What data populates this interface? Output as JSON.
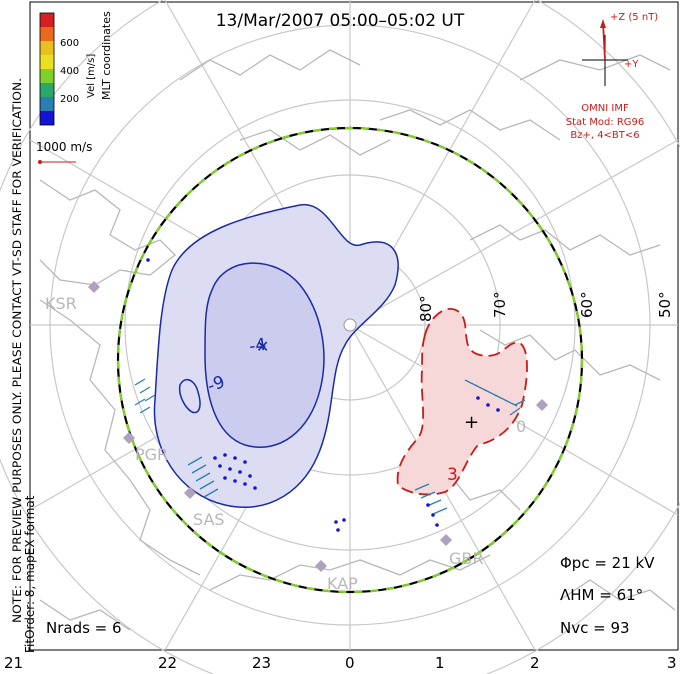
{
  "title": "13/Mar/2007 05:00–05:02 UT",
  "side_note_line1": "NOTE: FOR PREVIEW PURPOSES ONLY. PLEASE CONTACT VT-SD STAFF FOR VERIFICATION.",
  "side_note_line2": "FitOrder: 8, mapEX format",
  "colorbar": {
    "title": "MLT coordinates",
    "unit": "Vel [m/s]",
    "ticks": [
      "600",
      "400",
      "200"
    ],
    "colors": [
      "#d42020",
      "#e86a1a",
      "#e8c020",
      "#7fd12a",
      "#2aa86a",
      "#2a7fb0",
      "#3a5fd8",
      "#1414d4"
    ]
  },
  "velocity_scale": "1000 m/s",
  "imf": {
    "z_label": "+Z (5 nT)",
    "y_label": "+Y",
    "source": "OMNI IMF",
    "stat_mod": "Stat Mod: RG96",
    "condition": "Bz+, 4<BT<6"
  },
  "latitude_labels": [
    "80°",
    "70°",
    "60°",
    "50°"
  ],
  "stations": [
    "KSR",
    "PGR",
    "SAS",
    "KAP",
    "GBR"
  ],
  "contours": {
    "negative_center": "-4",
    "negative_outer": "-9",
    "positive": "3",
    "positive_right": "0"
  },
  "stats": {
    "phi_pc": "Φpc = 21 kV",
    "lambda_hm": "ΛHM = 61°",
    "n_vc": "Nvc = 93",
    "n_rads": "Nrads = 6"
  },
  "mlt_labels": [
    "21",
    "22",
    "23",
    "0",
    "1",
    "2",
    "3"
  ],
  "colors": {
    "negative_fill": "#dcdcf2",
    "negative_line": "#1a2aa8",
    "positive_fill": "#f7d8d8",
    "positive_line": "#cc1a1a",
    "boundary": "#7ed321",
    "land": "#b8b8b8",
    "grid": "#c8c8c8"
  }
}
